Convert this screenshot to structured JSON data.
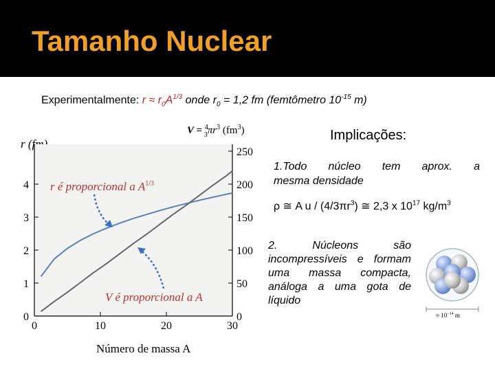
{
  "title": "Tamanho Nuclear",
  "formula": {
    "prefix": "Experimentalmente: ",
    "expr_r": "r ≈ r",
    "expr_sub0": "0",
    "expr_A": "A",
    "expr_exp": "1/3",
    "onde": " onde ",
    "r0_r": "r",
    "r0_sub": "0",
    "r0_value": " = 1,2 fm (femtômetro 10",
    "r0_exp": "-15",
    "r0_unit": " m)"
  },
  "chart_data": {
    "type": "line",
    "x": [
      1,
      3,
      5,
      7,
      9,
      11,
      13,
      15,
      17,
      19,
      21,
      23,
      25,
      27,
      29,
      30
    ],
    "series": [
      {
        "axis": "left",
        "values": [
          1.2,
          1.73,
          2.05,
          2.3,
          2.5,
          2.67,
          2.82,
          2.96,
          3.08,
          3.2,
          3.31,
          3.41,
          3.51,
          3.6,
          3.69,
          3.73
        ],
        "color": "#5a7fbf"
      },
      {
        "axis": "right",
        "values": [
          7,
          22,
          36,
          51,
          66,
          80,
          95,
          110,
          124,
          139,
          154,
          168,
          183,
          198,
          212,
          220
        ],
        "color": "#666666"
      }
    ],
    "xlabel": "Número de massa A",
    "ylabel_left": "r (fm)",
    "ylabel_right": "V = 4/3 π r³ (fm³)",
    "right_label_prefix": "V = ",
    "right_label_num": "4",
    "right_label_den": "3",
    "right_label_rest": "πr",
    "right_label_exp": "3",
    "right_label_unit": " (fm",
    "right_label_unit_exp": "3",
    "right_label_close": ")",
    "xticks": [
      "0",
      "10",
      "20",
      "30"
    ],
    "yticks_left": [
      "0",
      "1",
      "2",
      "3",
      "4"
    ],
    "yticks_right": [
      "0",
      "50",
      "100",
      "150",
      "200",
      "250"
    ],
    "xlim": [
      0,
      30
    ],
    "ylim_left": [
      0,
      5
    ],
    "ylim_right": [
      0,
      250
    ],
    "annotation_r": "r é proporcional a A",
    "annotation_r_exp": "1/3",
    "annotation_v": "V é proporcional a A"
  },
  "implications": {
    "title": "Implicações:",
    "item1_line1": "1.Todo núcleo tem aprox. a",
    "item1_line2": "mesma densidade",
    "density": "ρ ≅ A u / (4/3πr",
    "density_exp1": "3",
    "density_mid": ") ≅ 2,3 x 10",
    "density_exp2": "17",
    "density_unit": " kg/m",
    "density_exp3": "3",
    "item2": "2. Núcleons são incompressíveis e formam uma massa compacta, análoga a uma gota de líquido"
  },
  "nucleus_caption": "≈ 10",
  "nucleus_caption_exp": "−14",
  "nucleus_caption_unit": " m"
}
